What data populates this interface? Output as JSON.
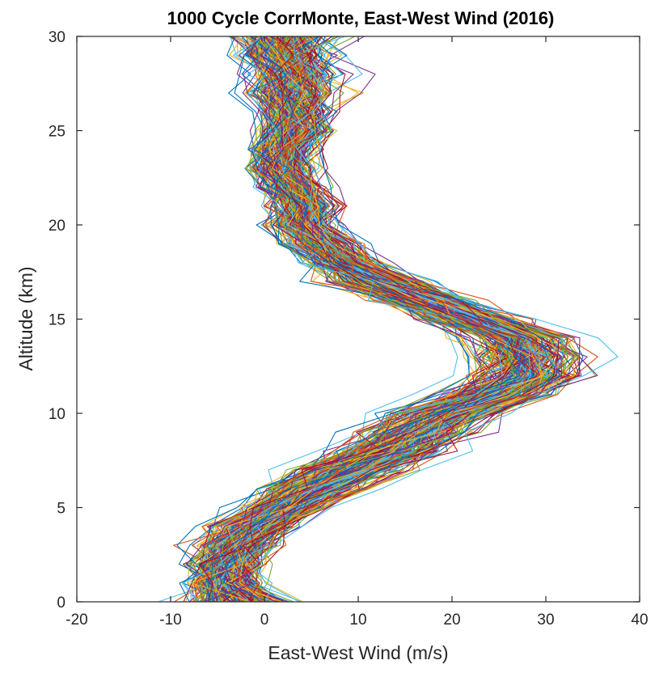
{
  "chart_data": {
    "type": "line",
    "title": "1000 Cycle CorrMonte, East-West Wind (2016)",
    "xlabel": "East-West Wind (m/s)",
    "ylabel": "Altitude (km)",
    "xlim": [
      -20,
      40
    ],
    "ylim": [
      0,
      30
    ],
    "xticks": [
      -20,
      -10,
      0,
      10,
      20,
      30,
      40
    ],
    "yticks": [
      0,
      5,
      10,
      15,
      20,
      25,
      30
    ],
    "grid": false,
    "legend": "none",
    "series_count": 1000,
    "series_colors": [
      "#0072BD",
      "#D95319",
      "#EDB120",
      "#7E2F8E",
      "#77AC30",
      "#4DBEEE",
      "#A2142F"
    ],
    "altitude_km": [
      0,
      1,
      2,
      3,
      4,
      5,
      6,
      7,
      8,
      9,
      10,
      11,
      12,
      13,
      14,
      15,
      16,
      17,
      18,
      19,
      20,
      21,
      22,
      23,
      24,
      25,
      26,
      27,
      28,
      29,
      30
    ],
    "mean_profile_ms": [
      -3,
      -4,
      -4,
      -3,
      -1,
      2,
      5,
      9,
      13,
      16,
      19,
      24,
      28,
      28,
      27,
      22,
      17,
      12,
      8,
      6,
      4,
      4,
      3,
      2,
      2,
      3,
      3,
      3,
      3,
      2,
      2
    ],
    "spread_ms": [
      4,
      3,
      3,
      3,
      3,
      3,
      3.5,
      3.5,
      3.5,
      3.5,
      3.5,
      3.5,
      3.5,
      3.5,
      3.5,
      3.5,
      3.5,
      3.5,
      3,
      3,
      2.5,
      2.5,
      2.5,
      2.5,
      2.5,
      2.5,
      2.5,
      3,
      3,
      3,
      3.5
    ]
  }
}
